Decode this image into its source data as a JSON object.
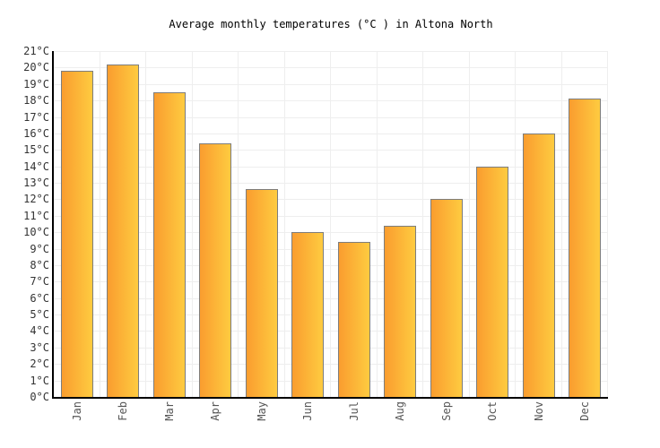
{
  "title": "Average monthly temperatures (°C ) in Altona North",
  "chart_data": {
    "type": "bar",
    "title": "Average monthly temperatures (°C ) in Altona North",
    "categories": [
      "Jan",
      "Feb",
      "Mar",
      "Apr",
      "May",
      "Jun",
      "Jul",
      "Aug",
      "Sep",
      "Oct",
      "Nov",
      "Dec"
    ],
    "values": [
      19.8,
      20.2,
      18.5,
      15.4,
      12.6,
      10.0,
      9.4,
      10.4,
      12.0,
      14.0,
      16.0,
      18.1
    ],
    "xlabel": "",
    "ylabel": "",
    "ylim": [
      0,
      21
    ],
    "ytick_step": 1,
    "ytick_suffix": "°C",
    "grid": true,
    "legend_position": "none",
    "colors": {
      "bar_gradient_left": "#fa9d2f",
      "bar_gradient_right": "#fecb40",
      "bar_border": "#7d7d7d",
      "gridline": "#eeeeee",
      "axis": "#000000",
      "ytick_text": "#333333",
      "xtick_text": "#555555",
      "title_text": "#000000",
      "background": "#ffffff"
    }
  }
}
